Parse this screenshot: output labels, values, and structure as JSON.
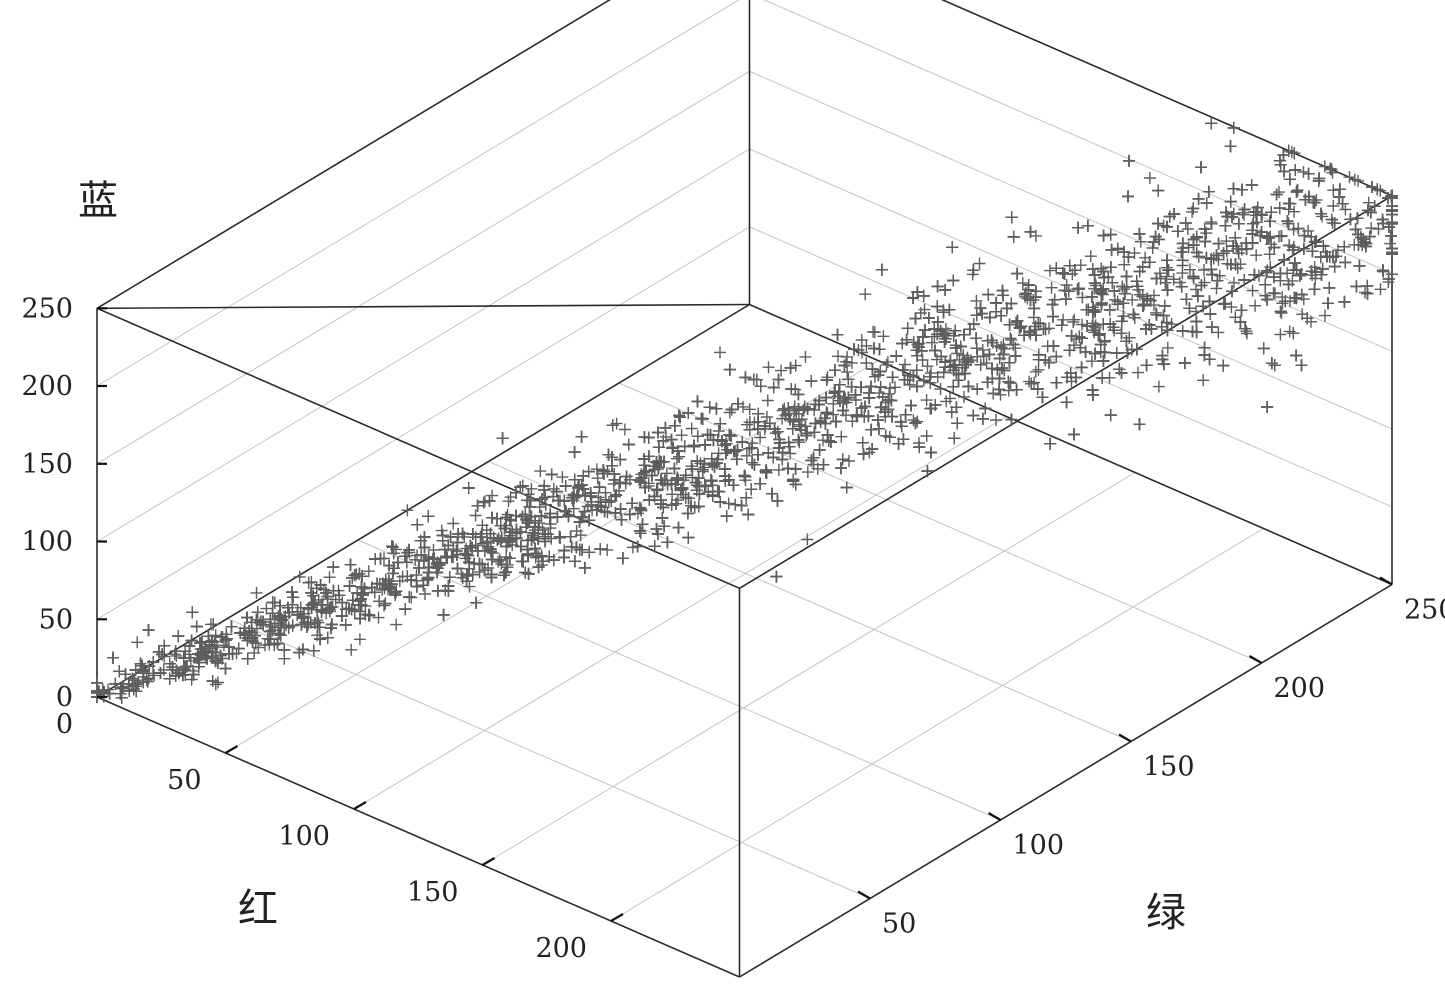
{
  "chart_data": {
    "type": "scatter",
    "projection": "3d",
    "title": "",
    "axes": {
      "x": {
        "label": "红",
        "range": [
          0,
          250
        ],
        "ticks": [
          "0",
          "50",
          "100",
          "150",
          "200"
        ]
      },
      "y": {
        "label": "绿",
        "range": [
          0,
          250
        ],
        "ticks": [
          "50",
          "100",
          "150",
          "200",
          "250"
        ]
      },
      "z": {
        "label": "蓝",
        "range": [
          0,
          250
        ],
        "ticks": [
          "0",
          "50",
          "100",
          "150",
          "200",
          "250"
        ]
      }
    },
    "grid": true,
    "legend": "none",
    "marker": "+",
    "marker_color": "#5e5e5e",
    "series": [
      {
        "approx_point_count": 6000,
        "distribution": "points concentrated along the diagonal from (0,0,0) to (250,250,250), red ≈ green ≈ blue",
        "sample_points": [
          [
            5,
            5,
            5
          ],
          [
            10,
            12,
            9
          ],
          [
            15,
            14,
            16
          ],
          [
            20,
            22,
            18
          ],
          [
            25,
            24,
            27
          ],
          [
            30,
            30,
            28
          ],
          [
            35,
            38,
            33
          ],
          [
            40,
            40,
            42
          ],
          [
            45,
            46,
            44
          ],
          [
            50,
            52,
            50
          ],
          [
            55,
            56,
            53
          ],
          [
            60,
            58,
            62
          ],
          [
            65,
            66,
            64
          ],
          [
            70,
            72,
            70
          ],
          [
            75,
            74,
            78
          ],
          [
            80,
            82,
            80
          ],
          [
            85,
            84,
            86
          ],
          [
            90,
            92,
            88
          ],
          [
            95,
            96,
            97
          ],
          [
            100,
            100,
            100
          ],
          [
            105,
            108,
            104
          ],
          [
            110,
            110,
            112
          ],
          [
            115,
            118,
            114
          ],
          [
            120,
            120,
            122
          ],
          [
            125,
            128,
            124
          ],
          [
            130,
            132,
            130
          ],
          [
            135,
            136,
            138
          ],
          [
            140,
            142,
            140
          ],
          [
            145,
            148,
            146
          ],
          [
            150,
            152,
            150
          ],
          [
            155,
            158,
            156
          ],
          [
            160,
            162,
            160
          ],
          [
            165,
            168,
            166
          ],
          [
            170,
            172,
            172
          ],
          [
            175,
            178,
            176
          ],
          [
            180,
            182,
            182
          ],
          [
            185,
            188,
            186
          ],
          [
            190,
            192,
            192
          ],
          [
            195,
            198,
            196
          ],
          [
            200,
            202,
            202
          ],
          [
            205,
            208,
            208
          ],
          [
            210,
            212,
            212
          ],
          [
            215,
            218,
            216
          ],
          [
            220,
            222,
            222
          ],
          [
            225,
            228,
            228
          ],
          [
            230,
            232,
            232
          ],
          [
            235,
            238,
            238
          ],
          [
            240,
            242,
            242
          ],
          [
            245,
            246,
            246
          ],
          [
            250,
            250,
            250
          ],
          [
            120,
            160,
            90
          ],
          [
            140,
            180,
            110
          ],
          [
            100,
            150,
            60
          ],
          [
            160,
            220,
            150
          ],
          [
            180,
            230,
            170
          ],
          [
            60,
            100,
            40
          ],
          [
            90,
            130,
            70
          ],
          [
            150,
            200,
            130
          ],
          [
            200,
            240,
            190
          ],
          [
            170,
            210,
            150
          ],
          [
            80,
            40,
            110
          ],
          [
            100,
            60,
            140
          ],
          [
            60,
            30,
            90
          ],
          [
            130,
            90,
            170
          ],
          [
            150,
            120,
            200
          ],
          [
            200,
            180,
            240
          ],
          [
            170,
            120,
            220
          ],
          [
            70,
            50,
            120
          ],
          [
            110,
            70,
            150
          ],
          [
            90,
            60,
            130
          ]
        ]
      }
    ]
  }
}
